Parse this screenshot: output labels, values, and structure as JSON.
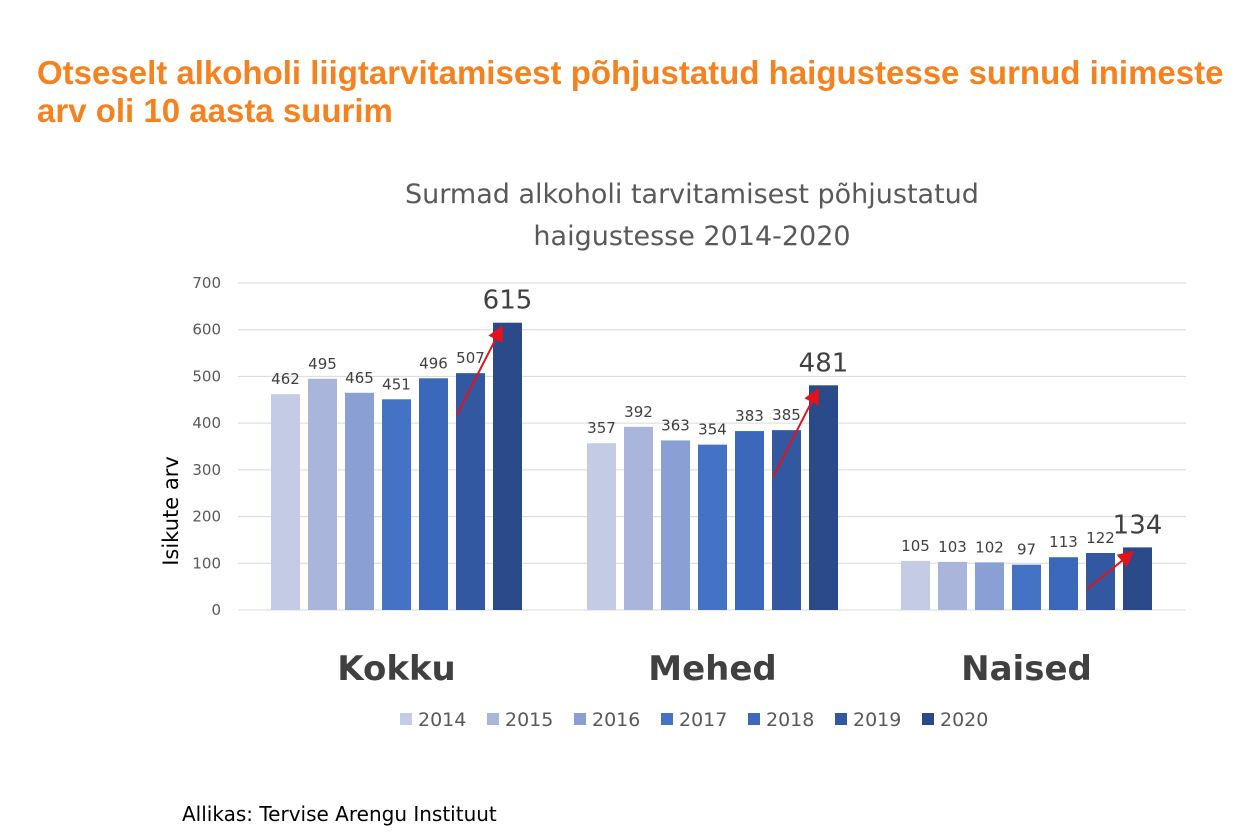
{
  "headline": "Otseselt alkoholi liigtarvitamisest põhjustatud haigustesse surnud inimeste arv oli 10 aasta suurim",
  "source": "Allikas: Tervise Arengu Instituut",
  "colors": {
    "headline": "#f58220",
    "arrow": "#e3121b",
    "grid": "#d9d9d9",
    "series": [
      "#c3cbe5",
      "#a9b5db",
      "#8a9fd4",
      "#4472c4",
      "#3b68bb",
      "#3358a2",
      "#2b4a8a"
    ]
  },
  "chart_data": {
    "type": "bar",
    "title_lines": [
      "Surmad alkoholi tarvitamisest põhjustatud",
      "haigustesse 2014-2020"
    ],
    "xlabel": "",
    "ylabel": "Isikute arv",
    "ylim": [
      0,
      700
    ],
    "yticks": [
      "0",
      "100",
      "200",
      "300",
      "400",
      "500",
      "600",
      "700"
    ],
    "grid": true,
    "legend_position": "bottom",
    "categories": [
      "Kokku",
      "Mehed",
      "Naised"
    ],
    "series": [
      {
        "name": "2014",
        "values": [
          462,
          357,
          105
        ]
      },
      {
        "name": "2015",
        "values": [
          495,
          392,
          103
        ]
      },
      {
        "name": "2016",
        "values": [
          465,
          363,
          102
        ]
      },
      {
        "name": "2017",
        "values": [
          451,
          354,
          97
        ]
      },
      {
        "name": "2018",
        "values": [
          496,
          383,
          113
        ]
      },
      {
        "name": "2019",
        "values": [
          507,
          385,
          122
        ]
      },
      {
        "name": "2020",
        "values": [
          615,
          481,
          134
        ]
      }
    ],
    "annotations": "red arrows pointing up to the 2020 bar in each category"
  }
}
